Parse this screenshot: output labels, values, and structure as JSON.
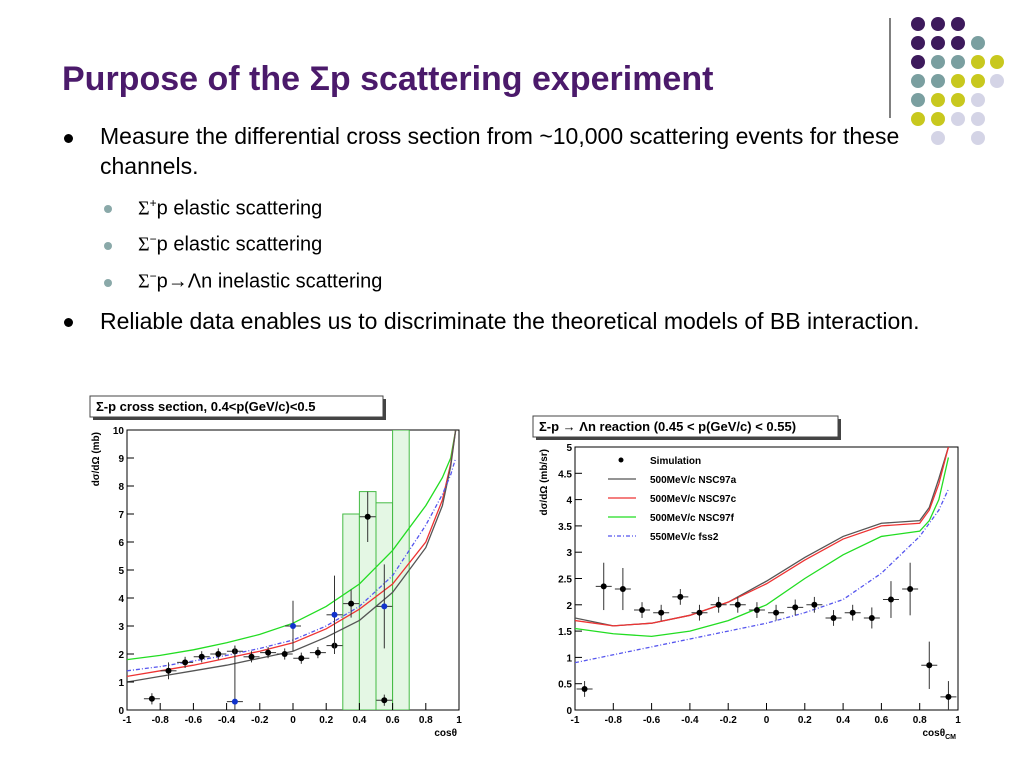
{
  "title": "Purpose of the Σp scattering experiment",
  "bullets": [
    {
      "text": "Measure the differential cross section from ~10,000 scattering events for these channels.",
      "sub": [
        {
          "symbol": "Σ",
          "sup": "+",
          "text": "p elastic scattering"
        },
        {
          "symbol": "Σ",
          "sup": "−",
          "text": "p elastic scattering"
        },
        {
          "symbol": "Σ",
          "sup": "−",
          "text": "p→Λn inelastic scattering"
        }
      ]
    },
    {
      "text": "Reliable data enables us to discriminate the theoretical models of BB interaction."
    }
  ],
  "chart_data": [
    {
      "type": "scatter",
      "title": "Σ-p cross section, 0.4<p(GeV/c)<0.5",
      "xlabel": "cosθ",
      "ylabel": "dσ/dΩ (mb)",
      "xlim": [
        -1,
        1
      ],
      "ylim": [
        0,
        10
      ],
      "xticks": [
        -1,
        -0.8,
        -0.6,
        -0.4,
        -0.2,
        0,
        0.2,
        0.4,
        0.6,
        0.8,
        1
      ],
      "yticks": [
        0,
        1,
        2,
        3,
        4,
        5,
        6,
        7,
        8,
        9,
        10
      ],
      "hist": {
        "bins": [
          0.3,
          0.4,
          0.5,
          0.6,
          0.7
        ],
        "counts": [
          7,
          7.8,
          7.4,
          10
        ],
        "color": "#44bb44"
      },
      "curve_x": [
        -1,
        -0.8,
        -0.6,
        -0.4,
        -0.2,
        0,
        0.2,
        0.4,
        0.6,
        0.8,
        0.9,
        0.95,
        0.98
      ],
      "curves": [
        {
          "color": "#22dd22",
          "values": [
            1.8,
            1.95,
            2.15,
            2.4,
            2.7,
            3.1,
            3.7,
            4.5,
            5.7,
            7.3,
            8.3,
            9.0,
            10
          ]
        },
        {
          "color": "#ee3333",
          "values": [
            1.2,
            1.4,
            1.6,
            1.85,
            2.1,
            2.4,
            2.9,
            3.6,
            4.5,
            6.0,
            7.5,
            8.8,
            10
          ]
        },
        {
          "color": "#555555",
          "values": [
            1.0,
            1.2,
            1.4,
            1.6,
            1.85,
            2.1,
            2.6,
            3.2,
            4.2,
            5.8,
            7.3,
            8.7,
            10
          ]
        },
        {
          "color": "#5555ee",
          "dash": true,
          "values": [
            1.4,
            1.55,
            1.75,
            1.95,
            2.2,
            2.5,
            3.0,
            3.7,
            4.8,
            6.6,
            7.7,
            8.4,
            9.0
          ]
        }
      ],
      "points": [
        {
          "color": "#000000",
          "x": [
            -0.85,
            -0.75,
            -0.65,
            -0.55,
            -0.45,
            -0.35,
            -0.25,
            -0.15,
            -0.05,
            0.05,
            0.15,
            0.25,
            0.35,
            0.45,
            0.55
          ],
          "values": [
            0.4,
            1.4,
            1.7,
            1.9,
            2.0,
            2.1,
            1.9,
            2.05,
            2.0,
            1.85,
            2.05,
            2.3,
            3.8,
            6.9,
            0.35
          ],
          "errors": [
            0.2,
            0.3,
            0.2,
            0.2,
            0.2,
            0.2,
            0.2,
            0.2,
            0.2,
            0.2,
            0.2,
            0.3,
            0.5,
            0.9,
            0.2
          ]
        },
        {
          "color": "#1133cc",
          "x": [
            -0.35,
            0.0,
            0.25,
            0.55
          ],
          "values": [
            0.3,
            3.0,
            3.4,
            3.7
          ],
          "errors": [
            2.0,
            0.9,
            1.4,
            1.5
          ]
        }
      ]
    },
    {
      "type": "scatter",
      "title": "Σ-p → Λn reaction (0.45 < p(GeV/c) < 0.55)",
      "xlabel": "cosθ",
      "xlabel_sub": "CM",
      "ylabel": "dσ/dΩ (mb/sr)",
      "xlim": [
        -1,
        1
      ],
      "ylim": [
        0,
        5
      ],
      "xticks": [
        -1,
        -0.8,
        -0.6,
        -0.4,
        -0.2,
        0,
        0.2,
        0.4,
        0.6,
        0.8,
        1
      ],
      "yticks": [
        0,
        0.5,
        1,
        1.5,
        2,
        2.5,
        3,
        3.5,
        4,
        4.5,
        5
      ],
      "curve_x": [
        -1,
        -0.8,
        -0.6,
        -0.4,
        -0.2,
        0,
        0.2,
        0.4,
        0.6,
        0.8,
        0.85,
        0.9,
        0.95
      ],
      "curves": [
        {
          "name": "500MeV/c NSC97a",
          "color": "#555555",
          "values": [
            1.75,
            1.6,
            1.65,
            1.8,
            2.05,
            2.45,
            2.9,
            3.3,
            3.55,
            3.6,
            3.85,
            4.4,
            5.0
          ]
        },
        {
          "name": "500MeV/c NSC97c",
          "color": "#ee3333",
          "values": [
            1.7,
            1.6,
            1.65,
            1.8,
            2.05,
            2.4,
            2.85,
            3.25,
            3.5,
            3.55,
            3.8,
            4.3,
            5.0
          ]
        },
        {
          "name": "500MeV/c NSC97f",
          "color": "#22dd22",
          "values": [
            1.55,
            1.45,
            1.4,
            1.5,
            1.7,
            2.0,
            2.5,
            2.95,
            3.3,
            3.4,
            3.6,
            4.0,
            4.8
          ]
        },
        {
          "name": "550MeV/c fss2",
          "color": "#5555ee",
          "dash": true,
          "values": [
            0.9,
            1.05,
            1.2,
            1.35,
            1.5,
            1.65,
            1.85,
            2.1,
            2.6,
            3.3,
            3.55,
            3.8,
            4.2
          ]
        }
      ],
      "points": [
        {
          "name": "Simulation",
          "color": "#000000",
          "x": [
            -0.95,
            -0.85,
            -0.75,
            -0.65,
            -0.55,
            -0.45,
            -0.35,
            -0.25,
            -0.15,
            -0.05,
            0.05,
            0.15,
            0.25,
            0.35,
            0.45,
            0.55,
            0.65,
            0.75,
            0.85,
            0.95
          ],
          "values": [
            0.4,
            2.35,
            2.3,
            1.9,
            1.85,
            2.15,
            1.85,
            2.0,
            2.0,
            1.9,
            1.85,
            1.95,
            2.0,
            1.75,
            1.85,
            1.75,
            2.1,
            2.3,
            0.85,
            0.25
          ],
          "errors": [
            0.15,
            0.45,
            0.4,
            0.15,
            0.15,
            0.15,
            0.15,
            0.15,
            0.15,
            0.15,
            0.15,
            0.15,
            0.15,
            0.15,
            0.15,
            0.2,
            0.35,
            0.5,
            0.45,
            0.3
          ]
        }
      ]
    }
  ]
}
